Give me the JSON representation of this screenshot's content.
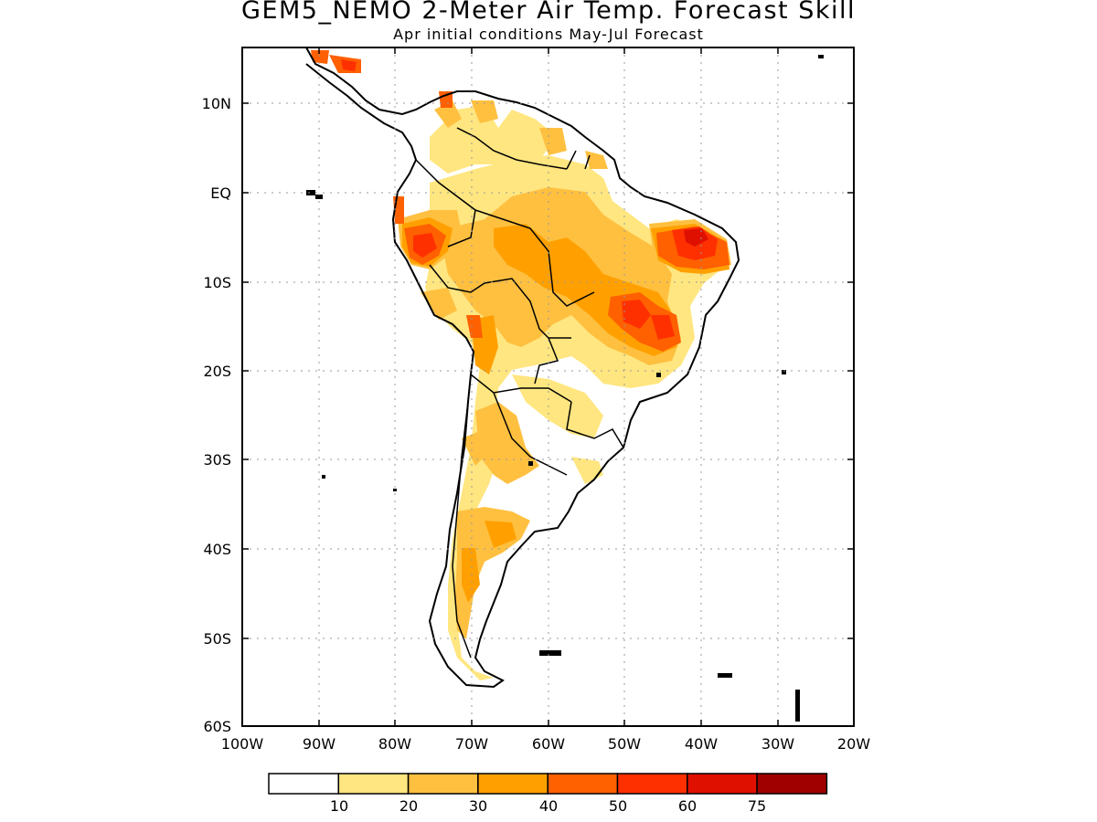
{
  "title": "GEM5_NEMO 2-Meter Air Temp. Forecast Skill",
  "subtitle": "Apr initial conditions  May-Jul Forecast",
  "map": {
    "region": "South America",
    "projection": "latitude-longitude",
    "lon_range": [
      -100,
      -20
    ],
    "lat_range": [
      -60,
      15
    ],
    "grid": "dotted",
    "lat_tick_labels": [
      "10N",
      "EQ",
      "10S",
      "20S",
      "30S",
      "40S",
      "50S",
      "60S"
    ],
    "lon_tick_labels": [
      "100W",
      "90W",
      "80W",
      "70W",
      "60W",
      "50W",
      "40W",
      "30W",
      "20W"
    ]
  },
  "colorbar": {
    "levels": [
      "10",
      "20",
      "30",
      "40",
      "50",
      "60",
      "75"
    ],
    "colors": [
      "#ffffff",
      "#ffe680",
      "#ffc040",
      "#ffa000",
      "#ff6000",
      "#ff3000",
      "#e01000",
      "#a00000"
    ]
  }
}
